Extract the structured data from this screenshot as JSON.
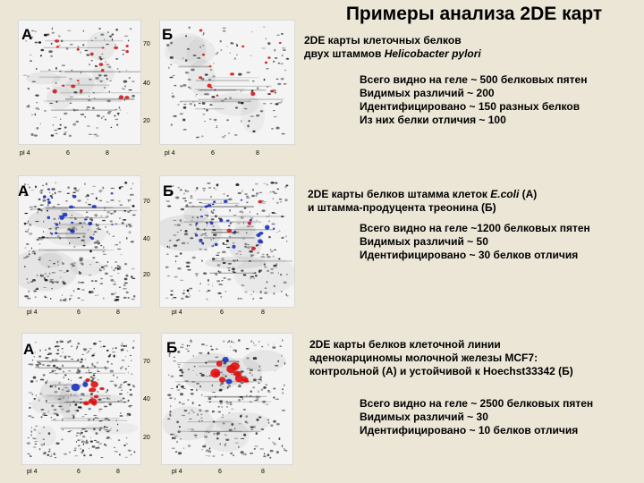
{
  "title": "Примеры анализа 2DE карт",
  "panels": [
    {
      "label_a": "А",
      "label_b": "Б",
      "mw": [
        "70",
        "40",
        "20"
      ],
      "pi_a": [
        "pI 4",
        "6",
        "8"
      ],
      "pi_b": [
        "pI 4",
        "6",
        "8"
      ],
      "desc_1": "2DE карты клеточных белков",
      "desc_2a": "двух штаммов ",
      "desc_2b": "Helicobacter pylori",
      "stats": [
        "Всего видно на геле ~ 500 белковых пятен",
        "Видимых различий ~ 200",
        "Идентифицировано ~ 150 разных белков",
        "Из них белки отличия ~ 100"
      ],
      "colors": {
        "mark": "#d01818",
        "mark2": "#1830c0"
      }
    },
    {
      "label_a": "А",
      "label_b": "Б",
      "mw": [
        "70",
        "40",
        "20"
      ],
      "pi_a": [
        "pI 4",
        "6",
        "8"
      ],
      "pi_b": [
        "pI 4",
        "6",
        "8"
      ],
      "desc_1a": "2DE карты белков штамма клеток ",
      "desc_1b": "E.coli",
      "desc_1c": " (А)",
      "desc_2": "и штамма-продуцента треонина (Б)",
      "stats": [
        "Всего видно на геле ~1200 белковых пятен",
        "Видимых различий ~ 50",
        "Идентифицировано ~ 30 белков отличия"
      ],
      "colors": {
        "mark": "#1830c0",
        "mark2": "#d01818"
      }
    },
    {
      "label_a": "А",
      "label_b": "Б",
      "mw": [
        "70",
        "40",
        "20"
      ],
      "pi_a": [
        "pI 4",
        "6",
        "8"
      ],
      "pi_b": [
        "pI 4",
        "6",
        "8"
      ],
      "desc_1": "2DE карты белков клеточной линии",
      "desc_2": "аденокарциномы молочной железы MCF7:",
      "desc_3": "контрольной (А) и устойчивой к Hoechst33342 (Б)",
      "stats": [
        "Всего видно на геле ~ 2500 белковых пятен",
        "Видимых различий ~ 30",
        "Идентифицировано ~ 10 белков отличия"
      ],
      "colors": {
        "mark": "#e01010",
        "mark2": "#1830c0"
      }
    }
  ]
}
